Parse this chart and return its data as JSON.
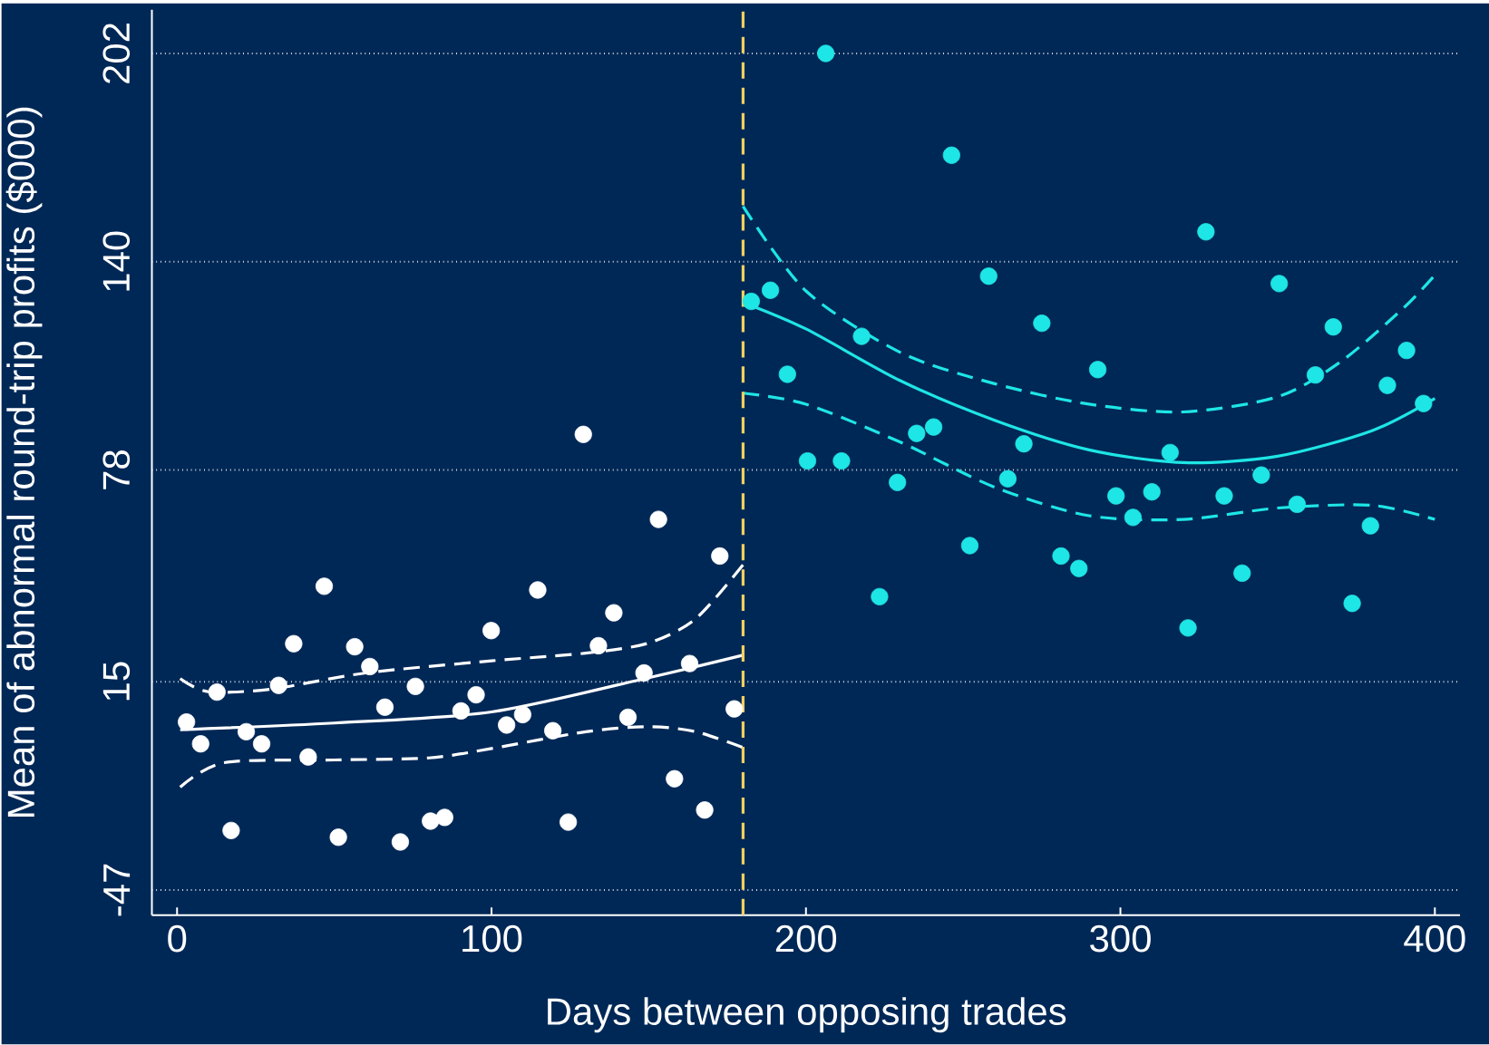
{
  "chart_data": {
    "type": "scatter",
    "xlabel": "Days between opposing trades",
    "ylabel": "Mean of abnormal round-trip profits ($000)",
    "xlim": [
      -8,
      408
    ],
    "ylim": [
      -54.5,
      215
    ],
    "xticks": [
      0,
      100,
      200,
      300,
      400
    ],
    "yticks": [
      -47,
      15,
      78,
      140,
      202
    ],
    "grid": "y",
    "ref_lines": [
      {
        "axis": "x",
        "value": 180,
        "color": "#f0d060",
        "line_style": "dashed"
      }
    ],
    "series": [
      {
        "type": "line",
        "color": "#ffffff",
        "x": [
          1,
          50,
          100,
          150,
          180
        ],
        "values": [
          0.7,
          2.7,
          6,
          16.2,
          22.9
        ]
      },
      {
        "type": "line",
        "line_style": "dashed",
        "color": "#ffffff",
        "x": [
          1,
          10,
          30,
          60,
          100,
          130,
          150,
          165,
          180
        ],
        "values": [
          15.9,
          12,
          12.8,
          17.6,
          21.2,
          23.5,
          26.5,
          33.8,
          49.8
        ]
      },
      {
        "type": "line",
        "line_style": "dashed",
        "color": "#ffffff",
        "x": [
          1,
          15,
          50,
          80,
          100,
          130,
          150,
          165,
          180
        ],
        "values": [
          -16.4,
          -9.1,
          -8.3,
          -7.7,
          -4.9,
          0.1,
          1.6,
          0.1,
          -4.6
        ]
      },
      {
        "type": "line",
        "color": "#1ee6e6",
        "x": [
          180,
          200,
          230,
          260,
          290,
          320,
          350,
          380,
          400
        ],
        "values": [
          127.9,
          120,
          104.6,
          92.8,
          84,
          80.2,
          82.1,
          89.7,
          99.3
        ]
      },
      {
        "type": "line",
        "line_style": "dashed",
        "color": "#1ee6e6",
        "x": [
          180,
          200,
          230,
          260,
          290,
          320,
          350,
          370,
          390,
          400
        ],
        "values": [
          156.5,
          131.3,
          113,
          103.7,
          97.6,
          95.3,
          99.8,
          110.2,
          126.2,
          136
        ]
      },
      {
        "type": "line",
        "line_style": "dashed",
        "color": "#1ee6e6",
        "x": [
          180,
          200,
          230,
          260,
          290,
          320,
          350,
          380,
          400
        ],
        "values": [
          100.9,
          97.6,
          86.3,
          72.9,
          64.4,
          63.3,
          66.7,
          67.5,
          63.3
        ]
      },
      {
        "marker": "circle",
        "color": "#ffffff",
        "x": [
          3,
          7.5,
          12.7,
          17.2,
          22,
          26.9,
          32.3,
          37.1,
          41.7,
          46.8,
          51.3,
          56.5,
          61.3,
          66.1,
          71,
          75.8,
          80.6,
          85.1,
          90.3,
          95.1,
          99.9,
          104.8,
          109.9,
          114.7,
          119.5,
          124.4,
          129.2,
          134,
          138.9,
          143.4,
          148.5,
          153.1,
          158.2,
          163,
          167.8,
          172.6,
          177.2
        ],
        "values": [
          3,
          -3.5,
          11.9,
          -29.3,
          0.1,
          -3.5,
          13.9,
          26.3,
          -7.4,
          43.4,
          -31.3,
          25.4,
          19.5,
          7.4,
          -32.7,
          13.6,
          -26.5,
          -25.4,
          6.3,
          11.1,
          30.2,
          2.1,
          5.2,
          42.3,
          0.4,
          -26.8,
          88.6,
          25.7,
          35.5,
          4.4,
          17.6,
          63.3,
          -13.9,
          20.4,
          -23.2,
          52.4,
          6.9
        ]
      },
      {
        "marker": "circle",
        "color": "#1ee6e6",
        "x": [
          182.6,
          188.7,
          194.1,
          200.5,
          206.3,
          211.3,
          217.7,
          223.4,
          229.1,
          235.2,
          240.6,
          246.3,
          252.1,
          258.1,
          264.2,
          269.3,
          275,
          281.1,
          286.8,
          292.8,
          298.6,
          304,
          310,
          315.8,
          321.5,
          327.2,
          333,
          338.7,
          344.8,
          350.5,
          356.2,
          362,
          367.7,
          373.7,
          379.5,
          384.9,
          391,
          396.4
        ],
        "values": [
          128.2,
          131.5,
          106.5,
          80.7,
          202,
          80.7,
          117.8,
          40.3,
          74.3,
          88.9,
          90.8,
          171.7,
          55.5,
          135.7,
          75.4,
          85.8,
          121.7,
          52.4,
          48.7,
          107.9,
          70.3,
          63.9,
          71.5,
          83.2,
          31,
          148.9,
          70.3,
          47.3,
          76.5,
          133.5,
          67.8,
          106.3,
          120.6,
          38.3,
          61.4,
          103.2,
          113.6,
          97.8
        ]
      }
    ]
  }
}
